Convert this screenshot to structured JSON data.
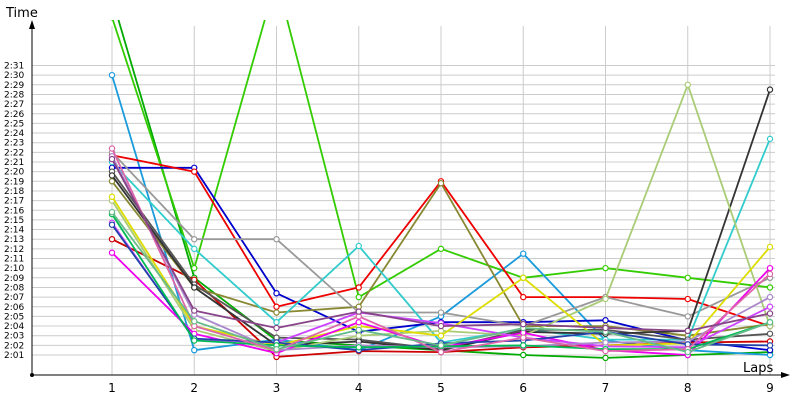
{
  "chart_data": {
    "type": "line",
    "title": "",
    "xlabel": "Laps",
    "ylabel": "Time",
    "x": [
      1,
      2,
      3,
      4,
      5,
      6,
      7,
      8,
      9
    ],
    "x_tick_labels": [
      "1",
      "2",
      "3",
      "4",
      "5",
      "6",
      "7",
      "8",
      "9"
    ],
    "y_unit": "seconds",
    "ylim": [
      120,
      151
    ],
    "y_tick_labels": [
      "2:01",
      "2:02",
      "2:03",
      "2:04",
      "2:05",
      "2:06",
      "2:07",
      "2:08",
      "2:09",
      "2:10",
      "2:11",
      "2:12",
      "2:13",
      "2:14",
      "2:15",
      "2:16",
      "2:17",
      "2:18",
      "2:19",
      "2:20",
      "2:21",
      "2:22",
      "2:23",
      "2:24",
      "2:25",
      "2:26",
      "2:27",
      "2:28",
      "2:29",
      "2:30",
      "2:31"
    ],
    "grid": true,
    "legend": false,
    "series": [
      {
        "color": "#00aa00",
        "values": [
          158.0,
          129.0,
          122.5,
          122.0,
          121.5,
          121.0,
          120.7,
          121.0,
          121.3
        ]
      },
      {
        "color": "#33cc00",
        "values": [
          156.0,
          130.0,
          160.0,
          127.0,
          132.0,
          129.0,
          130.0,
          129.0,
          128.0
        ]
      },
      {
        "color": "#1a9bdc",
        "values": [
          150.0,
          121.5,
          122.6,
          121.5,
          125.0,
          131.5,
          122.5,
          121.5,
          121.0
        ]
      },
      {
        "color": "#0000cc",
        "values": [
          140.4,
          140.4,
          127.4,
          123.4,
          124.4,
          124.4,
          124.6,
          122.5,
          121.5
        ]
      },
      {
        "color": "#ee0000",
        "values": [
          141.7,
          140.0,
          126.0,
          128.0,
          139.0,
          127.0,
          127.0,
          126.8,
          124.0
        ]
      },
      {
        "color": "#cc0000",
        "values": [
          133.0,
          128.8,
          120.8,
          121.4,
          121.3,
          121.8,
          122.0,
          122.3,
          122.4
        ]
      },
      {
        "color": "#888833",
        "values": [
          139.0,
          128.0,
          125.4,
          126.0,
          138.8,
          124.0,
          124.0,
          123.0,
          124.2
        ]
      },
      {
        "color": "#999999",
        "values": [
          142.0,
          133.0,
          133.0,
          125.4,
          125.4,
          124.0,
          127.0,
          125.0,
          129.0
        ]
      },
      {
        "color": "#33cccc",
        "values": [
          141.0,
          132.0,
          124.4,
          132.3,
          122.3,
          123.7,
          122.6,
          122.6,
          143.4
        ]
      },
      {
        "color": "#555555",
        "values": [
          140.0,
          128.3,
          122.8,
          122.6,
          121.6,
          123.6,
          123.6,
          122.6,
          123.2
        ]
      },
      {
        "color": "#333333",
        "values": [
          139.6,
          128.0,
          122.0,
          122.4,
          121.5,
          123.4,
          123.2,
          123.5,
          148.5
        ]
      },
      {
        "color": "#aacc77",
        "values": [
          137.0,
          123.6,
          121.4,
          123.0,
          123.5,
          123.0,
          126.8,
          149.0,
          124.0
        ]
      },
      {
        "color": "#dddd00",
        "values": [
          137.4,
          124.0,
          122.0,
          124.0,
          123.0,
          129.0,
          122.0,
          122.2,
          132.2
        ]
      },
      {
        "color": "#ee00ee",
        "values": [
          131.6,
          123.2,
          121.2,
          124.4,
          121.8,
          123.3,
          121.5,
          121.0,
          130.0
        ]
      },
      {
        "color": "#cc44ff",
        "values": [
          134.7,
          122.6,
          122.3,
          125.4,
          124.3,
          122.8,
          121.9,
          121.8,
          126.0
        ]
      },
      {
        "color": "#aa88cc",
        "values": [
          141.6,
          125.2,
          121.5,
          122.0,
          121.8,
          121.9,
          122.3,
          122.4,
          127.0
        ]
      },
      {
        "color": "#2244aa",
        "values": [
          134.5,
          122.7,
          122.3,
          121.5,
          122.2,
          122.5,
          123.4,
          122.1,
          122.0
        ]
      },
      {
        "color": "#00bb55",
        "values": [
          135.6,
          122.5,
          122.0,
          121.8,
          121.9,
          122.0,
          121.6,
          121.6,
          124.4
        ]
      },
      {
        "color": "#dd66aa",
        "values": [
          142.4,
          124.0,
          121.5,
          125.0,
          121.3,
          122.8,
          121.4,
          121.6,
          129.4
        ]
      },
      {
        "color": "#66bb88",
        "values": [
          135.8,
          124.5,
          121.6,
          123.6,
          122.0,
          123.8,
          123.4,
          121.3,
          124.4
        ]
      },
      {
        "color": "#884488",
        "values": [
          141.3,
          125.6,
          123.8,
          125.5,
          124.0,
          124.2,
          123.8,
          123.5,
          125.3
        ]
      }
    ]
  }
}
